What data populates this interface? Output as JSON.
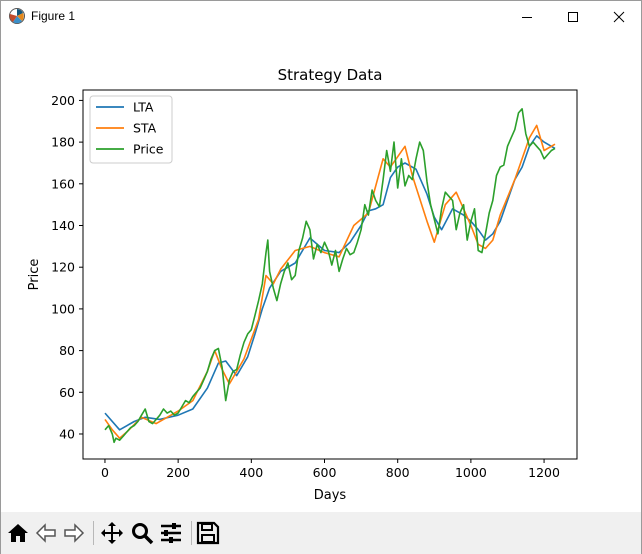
{
  "window": {
    "title": "Figure 1"
  },
  "toolbar": {
    "buttons": [
      {
        "name": "home-icon"
      },
      {
        "name": "back-icon"
      },
      {
        "name": "forward-icon"
      },
      {
        "name": "pan-icon"
      },
      {
        "name": "zoom-icon"
      },
      {
        "name": "subplots-icon"
      },
      {
        "name": "save-icon"
      }
    ]
  },
  "chart_data": {
    "type": "line",
    "title": "Strategy Data",
    "xlabel": "Days",
    "ylabel": "Price",
    "xlim": [
      -60,
      1290
    ],
    "ylim": [
      28,
      205
    ],
    "xticks": [
      0,
      200,
      400,
      600,
      800,
      1000,
      1200
    ],
    "yticks": [
      40,
      60,
      80,
      100,
      120,
      140,
      160,
      180,
      200
    ],
    "legend": "upper-left",
    "grid": false,
    "series": [
      {
        "name": "LTA",
        "color": "#1f77b4",
        "x": [
          0,
          40,
          80,
          110,
          150,
          200,
          240,
          280,
          310,
          330,
          360,
          390,
          410,
          430,
          450,
          480,
          520,
          560,
          600,
          640,
          670,
          700,
          720,
          740,
          760,
          780,
          800,
          820,
          850,
          880,
          900,
          920,
          950,
          980,
          1000,
          1020,
          1040,
          1060,
          1080,
          1100,
          1120,
          1140,
          1160,
          1180,
          1200,
          1230
        ],
        "y": [
          50,
          42,
          46,
          48,
          47,
          49,
          52,
          62,
          74,
          75,
          68,
          77,
          88,
          100,
          110,
          118,
          122,
          134,
          128,
          127,
          132,
          140,
          147,
          148,
          150,
          163,
          168,
          170,
          167,
          155,
          144,
          138,
          148,
          145,
          142,
          138,
          133,
          136,
          142,
          152,
          162,
          168,
          178,
          183,
          180,
          177
        ]
      },
      {
        "name": "STA",
        "color": "#ff7f0e",
        "x": [
          0,
          20,
          40,
          60,
          100,
          140,
          200,
          240,
          280,
          300,
          320,
          340,
          380,
          420,
          440,
          460,
          480,
          520,
          560,
          600,
          640,
          680,
          720,
          760,
          780,
          800,
          820,
          840,
          880,
          900,
          930,
          960,
          1000,
          1020,
          1040,
          1060,
          1080,
          1120,
          1160,
          1180,
          1200,
          1230
        ],
        "y": [
          47,
          42,
          38,
          41,
          48,
          45,
          51,
          56,
          70,
          80,
          71,
          64,
          76,
          95,
          116,
          112,
          119,
          128,
          130,
          127,
          125,
          140,
          146,
          172,
          168,
          173,
          178,
          164,
          142,
          132,
          150,
          156,
          140,
          131,
          129,
          133,
          145,
          162,
          182,
          188,
          176,
          179
        ]
      },
      {
        "name": "Price",
        "color": "#2ca02c",
        "x": [
          0,
          10,
          20,
          25,
          30,
          40,
          50,
          60,
          70,
          80,
          90,
          100,
          110,
          120,
          130,
          140,
          150,
          160,
          170,
          180,
          190,
          200,
          210,
          220,
          230,
          240,
          250,
          260,
          270,
          280,
          290,
          300,
          310,
          320,
          330,
          340,
          350,
          360,
          370,
          380,
          390,
          400,
          410,
          420,
          430,
          440,
          445,
          450,
          460,
          470,
          480,
          490,
          500,
          510,
          520,
          530,
          540,
          550,
          560,
          570,
          580,
          590,
          600,
          610,
          620,
          630,
          640,
          650,
          660,
          670,
          680,
          690,
          700,
          710,
          720,
          730,
          740,
          750,
          760,
          770,
          780,
          790,
          800,
          810,
          820,
          830,
          840,
          850,
          860,
          870,
          880,
          890,
          900,
          910,
          920,
          930,
          940,
          950,
          960,
          970,
          980,
          990,
          1000,
          1010,
          1020,
          1030,
          1040,
          1050,
          1060,
          1070,
          1080,
          1090,
          1100,
          1110,
          1120,
          1130,
          1140,
          1150,
          1160,
          1170,
          1180,
          1190,
          1200,
          1210,
          1220,
          1230
        ],
        "y": [
          42,
          44,
          40,
          36,
          38,
          37,
          39,
          41,
          43,
          44,
          46,
          49,
          52,
          46,
          45,
          47,
          49,
          52,
          50,
          51,
          49,
          50,
          53,
          56,
          55,
          58,
          60,
          62,
          66,
          70,
          76,
          80,
          81,
          72,
          56,
          66,
          70,
          71,
          78,
          84,
          88,
          90,
          97,
          104,
          112,
          127,
          133,
          118,
          110,
          104,
          112,
          118,
          122,
          114,
          116,
          128,
          134,
          142,
          138,
          124,
          131,
          127,
          132,
          128,
          121,
          128,
          118,
          124,
          129,
          126,
          127,
          132,
          138,
          150,
          145,
          157,
          152,
          149,
          162,
          176,
          166,
          180,
          158,
          172,
          159,
          164,
          162,
          172,
          180,
          176,
          161,
          150,
          143,
          136,
          148,
          156,
          154,
          152,
          138,
          146,
          150,
          133,
          142,
          148,
          128,
          127,
          136,
          146,
          152,
          164,
          168,
          169,
          178,
          182,
          186,
          194,
          196,
          184,
          178,
          180,
          178,
          176,
          172,
          174,
          176,
          177
        ]
      }
    ]
  }
}
